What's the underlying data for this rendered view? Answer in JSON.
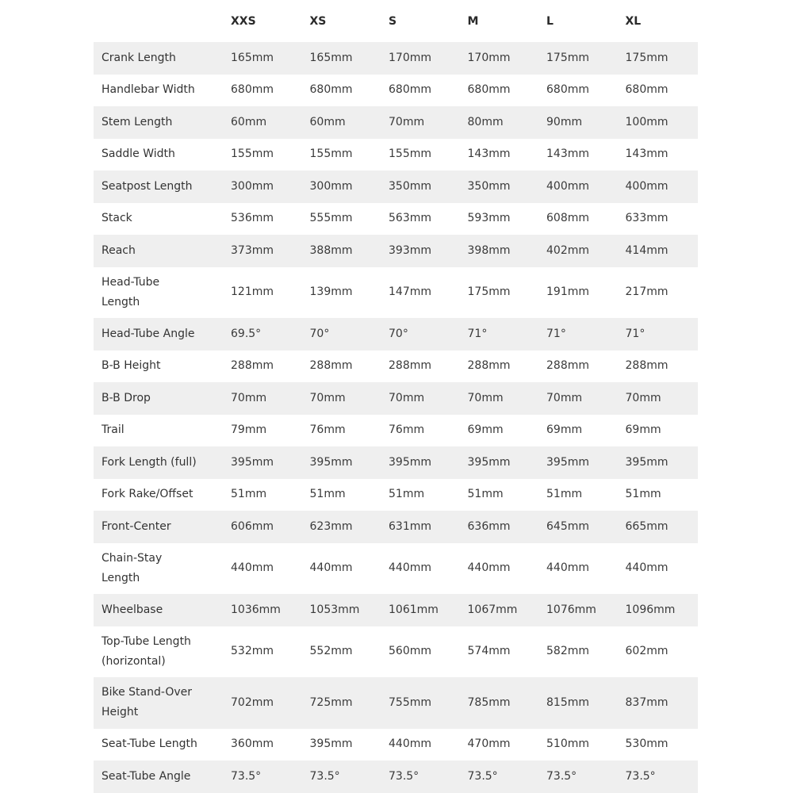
{
  "table": {
    "columns": [
      "XXS",
      "XS",
      "S",
      "M",
      "L",
      "XL"
    ],
    "rows": [
      [
        "Crank Length",
        "165mm",
        "165mm",
        "170mm",
        "170mm",
        "175mm",
        "175mm"
      ],
      [
        "Handlebar Width",
        "680mm",
        "680mm",
        "680mm",
        "680mm",
        "680mm",
        "680mm"
      ],
      [
        "Stem Length",
        "60mm",
        "60mm",
        "70mm",
        "80mm",
        "90mm",
        "100mm"
      ],
      [
        "Saddle Width",
        "155mm",
        "155mm",
        "155mm",
        "143mm",
        "143mm",
        "143mm"
      ],
      [
        "Seatpost Length",
        "300mm",
        "300mm",
        "350mm",
        "350mm",
        "400mm",
        "400mm"
      ],
      [
        "Stack",
        "536mm",
        "555mm",
        "563mm",
        "593mm",
        "608mm",
        "633mm"
      ],
      [
        "Reach",
        "373mm",
        "388mm",
        "393mm",
        "398mm",
        "402mm",
        "414mm"
      ],
      [
        "Head-Tube\nLength",
        "121mm",
        "139mm",
        "147mm",
        "175mm",
        "191mm",
        "217mm"
      ],
      [
        "Head-Tube Angle",
        "69.5°",
        "70°",
        "70°",
        "71°",
        "71°",
        "71°"
      ],
      [
        "B-B Height",
        "288mm",
        "288mm",
        "288mm",
        "288mm",
        "288mm",
        "288mm"
      ],
      [
        "B-B Drop",
        "70mm",
        "70mm",
        "70mm",
        "70mm",
        "70mm",
        "70mm"
      ],
      [
        "Trail",
        "79mm",
        "76mm",
        "76mm",
        "69mm",
        "69mm",
        "69mm"
      ],
      [
        "Fork Length (full)",
        "395mm",
        "395mm",
        "395mm",
        "395mm",
        "395mm",
        "395mm"
      ],
      [
        "Fork Rake/Offset",
        "51mm",
        "51mm",
        "51mm",
        "51mm",
        "51mm",
        "51mm"
      ],
      [
        "Front-Center",
        "606mm",
        "623mm",
        "631mm",
        "636mm",
        "645mm",
        "665mm"
      ],
      [
        "Chain-Stay\nLength",
        "440mm",
        "440mm",
        "440mm",
        "440mm",
        "440mm",
        "440mm"
      ],
      [
        "Wheelbase",
        "1036mm",
        "1053mm",
        "1061mm",
        "1067mm",
        "1076mm",
        "1096mm"
      ],
      [
        "Top-Tube Length\n(horizontal)",
        "532mm",
        "552mm",
        "560mm",
        "574mm",
        "582mm",
        "602mm"
      ],
      [
        "Bike Stand-Over\nHeight",
        "702mm",
        "725mm",
        "755mm",
        "785mm",
        "815mm",
        "837mm"
      ],
      [
        "Seat-Tube Length",
        "360mm",
        "395mm",
        "440mm",
        "470mm",
        "510mm",
        "530mm"
      ],
      [
        "Seat-Tube Angle",
        "73.5°",
        "73.5°",
        "73.5°",
        "73.5°",
        "73.5°",
        "73.5°"
      ]
    ]
  }
}
